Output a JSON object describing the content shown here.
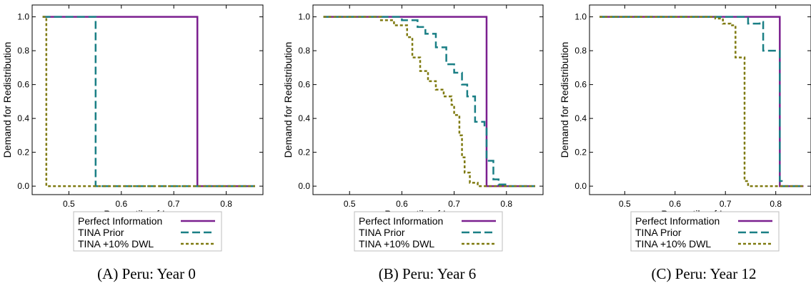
{
  "colors": {
    "perfect": "#7b1f8f",
    "prior": "#1a7f85",
    "dwl": "#7f7a10",
    "axis": "#000000"
  },
  "chart_data": [
    {
      "type": "line",
      "caption": "(A) Peru: Year 0",
      "xlabel": "Percentile of Income",
      "ylabel": "Demand for Redistribution",
      "xlim": [
        0.43,
        0.87
      ],
      "ylim": [
        -0.05,
        1.07
      ],
      "xticks": [
        0.5,
        0.6,
        0.7,
        0.8
      ],
      "xtick_labels": [
        "0.5",
        "0.6",
        "0.7",
        "0.8"
      ],
      "yticks": [
        0.0,
        0.2,
        0.4,
        0.6,
        0.8,
        1.0
      ],
      "ytick_labels": [
        "0.0",
        "0.2",
        "0.4",
        "0.6",
        "0.8",
        "1.0"
      ],
      "grid": false,
      "legend_position": "below-left",
      "series": [
        {
          "name": "Perfect Information",
          "style": "solid",
          "x": [
            0.45,
            0.745,
            0.745,
            0.855
          ],
          "y": [
            1.0,
            1.0,
            0.0,
            0.0
          ]
        },
        {
          "name": "TINA Prior",
          "style": "dashed",
          "x": [
            0.45,
            0.551,
            0.551,
            0.855
          ],
          "y": [
            1.0,
            1.0,
            0.0,
            0.0
          ]
        },
        {
          "name": "TINA +10% DWL",
          "style": "dotted",
          "x": [
            0.45,
            0.457,
            0.457,
            0.855
          ],
          "y": [
            1.0,
            1.0,
            0.0,
            0.0
          ]
        }
      ]
    },
    {
      "type": "line",
      "caption": "(B) Peru: Year 6",
      "xlabel": "Percentile of Income",
      "ylabel": "Demand for Redistribution",
      "xlim": [
        0.43,
        0.87
      ],
      "ylim": [
        -0.05,
        1.07
      ],
      "xticks": [
        0.5,
        0.6,
        0.7,
        0.8
      ],
      "xtick_labels": [
        "0.5",
        "0.6",
        "0.7",
        "0.8"
      ],
      "yticks": [
        0.0,
        0.2,
        0.4,
        0.6,
        0.8,
        1.0
      ],
      "ytick_labels": [
        "0.0",
        "0.2",
        "0.4",
        "0.6",
        "0.8",
        "1.0"
      ],
      "grid": false,
      "legend_position": "below-left",
      "series": [
        {
          "name": "Perfect Information",
          "style": "solid",
          "x": [
            0.45,
            0.762,
            0.762,
            0.855
          ],
          "y": [
            1.0,
            1.0,
            0.0,
            0.0
          ]
        },
        {
          "name": "TINA Prior",
          "style": "dashed",
          "x": [
            0.45,
            0.6,
            0.6,
            0.63,
            0.63,
            0.645,
            0.645,
            0.665,
            0.665,
            0.685,
            0.685,
            0.7,
            0.7,
            0.715,
            0.715,
            0.725,
            0.725,
            0.74,
            0.74,
            0.758,
            0.758,
            0.762,
            0.762,
            0.775,
            0.775,
            0.785,
            0.785,
            0.8,
            0.8,
            0.855
          ],
          "y": [
            1.0,
            1.0,
            0.98,
            0.98,
            0.94,
            0.94,
            0.9,
            0.9,
            0.82,
            0.82,
            0.72,
            0.72,
            0.67,
            0.67,
            0.6,
            0.6,
            0.53,
            0.53,
            0.38,
            0.38,
            0.34,
            0.34,
            0.15,
            0.15,
            0.04,
            0.04,
            0.01,
            0.01,
            0.0,
            0.0
          ]
        },
        {
          "name": "TINA +10% DWL",
          "style": "dotted",
          "x": [
            0.45,
            0.56,
            0.56,
            0.585,
            0.585,
            0.61,
            0.61,
            0.62,
            0.62,
            0.635,
            0.635,
            0.65,
            0.65,
            0.665,
            0.665,
            0.68,
            0.68,
            0.695,
            0.695,
            0.7,
            0.7,
            0.71,
            0.71,
            0.715,
            0.715,
            0.72,
            0.72,
            0.73,
            0.73,
            0.745,
            0.745,
            0.855
          ],
          "y": [
            1.0,
            1.0,
            0.98,
            0.98,
            0.95,
            0.95,
            0.88,
            0.88,
            0.76,
            0.76,
            0.68,
            0.68,
            0.62,
            0.62,
            0.57,
            0.57,
            0.53,
            0.53,
            0.48,
            0.48,
            0.42,
            0.42,
            0.3,
            0.3,
            0.17,
            0.17,
            0.08,
            0.08,
            0.02,
            0.02,
            0.0,
            0.0
          ]
        }
      ]
    },
    {
      "type": "line",
      "caption": "(C) Peru: Year 12",
      "xlabel": "Percentile of Income",
      "ylabel": "Demand for Redistribution",
      "xlim": [
        0.43,
        0.87
      ],
      "ylim": [
        -0.05,
        1.07
      ],
      "xticks": [
        0.5,
        0.6,
        0.7,
        0.8
      ],
      "xtick_labels": [
        "0.5",
        "0.6",
        "0.7",
        "0.8"
      ],
      "yticks": [
        0.0,
        0.2,
        0.4,
        0.6,
        0.8,
        1.0
      ],
      "ytick_labels": [
        "0.0",
        "0.2",
        "0.4",
        "0.6",
        "0.8",
        "1.0"
      ],
      "grid": false,
      "legend_position": "below-left",
      "series": [
        {
          "name": "Perfect Information",
          "style": "solid",
          "x": [
            0.45,
            0.808,
            0.808,
            0.855
          ],
          "y": [
            1.0,
            1.0,
            0.0,
            0.0
          ]
        },
        {
          "name": "TINA Prior",
          "style": "dashed",
          "x": [
            0.45,
            0.745,
            0.745,
            0.768,
            0.768,
            0.775,
            0.775,
            0.808,
            0.808,
            0.812,
            0.812,
            0.855
          ],
          "y": [
            1.0,
            1.0,
            0.96,
            0.96,
            0.97,
            0.97,
            0.8,
            0.8,
            0.03,
            0.03,
            0.0,
            0.0
          ]
        },
        {
          "name": "TINA +10% DWL",
          "style": "dotted",
          "x": [
            0.45,
            0.68,
            0.68,
            0.695,
            0.695,
            0.71,
            0.71,
            0.72,
            0.72,
            0.738,
            0.738,
            0.745,
            0.745,
            0.855
          ],
          "y": [
            1.0,
            1.0,
            0.99,
            0.99,
            0.96,
            0.96,
            0.95,
            0.95,
            0.76,
            0.76,
            0.03,
            0.03,
            0.0,
            0.0
          ]
        }
      ]
    }
  ]
}
